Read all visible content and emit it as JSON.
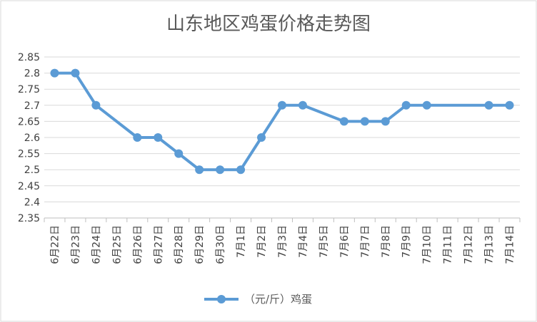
{
  "chart_data": {
    "type": "line",
    "title": "山东地区鸡蛋价格走势图",
    "xlabel": "",
    "ylabel": "",
    "categories": [
      "6月22日",
      "6月23日",
      "6月24日",
      "6月25日",
      "6月26日",
      "6月27日",
      "6月28日",
      "6月29日",
      "6月30日",
      "7月1日",
      "7月2日",
      "7月3日",
      "7月4日",
      "7月5日",
      "7月6日",
      "7月7日",
      "7月8日",
      "7月9日",
      "7月10日",
      "7月11日",
      "7月12日",
      "7月13日",
      "7月14日"
    ],
    "series": [
      {
        "name": "（元/斤）鸡蛋",
        "color": "#5b9bd5",
        "values": [
          2.8,
          2.8,
          2.7,
          null,
          2.6,
          2.6,
          2.55,
          2.5,
          2.5,
          2.5,
          2.6,
          2.7,
          2.7,
          null,
          2.65,
          2.65,
          2.65,
          2.7,
          2.7,
          null,
          null,
          2.7,
          2.7
        ]
      }
    ],
    "ylim": [
      2.35,
      2.85
    ],
    "yticks": [
      "2.35",
      "2.4",
      "2.45",
      "2.5",
      "2.55",
      "2.6",
      "2.65",
      "2.7",
      "2.75",
      "2.8",
      "2.85"
    ],
    "grid": true,
    "legend": "bottom"
  }
}
